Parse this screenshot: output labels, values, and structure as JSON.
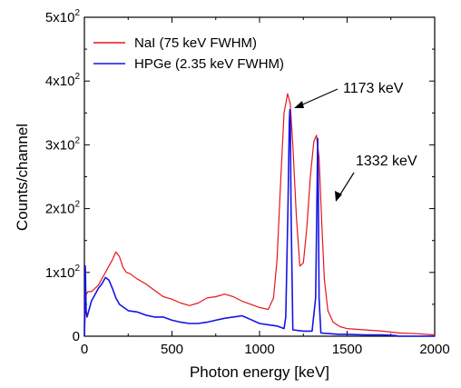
{
  "chart_data": {
    "type": "line",
    "title": "",
    "xlabel": "Photon energy [keV]",
    "ylabel": "Counts/channel",
    "xlim": [
      0,
      2000
    ],
    "ylim": [
      0,
      500
    ],
    "x_ticks": [
      0,
      500,
      1000,
      1500,
      2000
    ],
    "y_ticks": [
      {
        "value": 0,
        "mantissa": "0",
        "exp": ""
      },
      {
        "value": 100,
        "mantissa": "1x10",
        "exp": "2"
      },
      {
        "value": 200,
        "mantissa": "2x10",
        "exp": "2"
      },
      {
        "value": 300,
        "mantissa": "3x10",
        "exp": "2"
      },
      {
        "value": 400,
        "mantissa": "4x10",
        "exp": "2"
      },
      {
        "value": 500,
        "mantissa": "5x10",
        "exp": "2"
      }
    ],
    "legend_position": "top-left",
    "series": [
      {
        "name": "NaI (75 keV FWHM)",
        "color": "#e8141b",
        "x": [
          0,
          10,
          20,
          40,
          60,
          80,
          100,
          120,
          140,
          160,
          180,
          200,
          220,
          240,
          260,
          300,
          350,
          400,
          450,
          500,
          550,
          600,
          650,
          700,
          750,
          800,
          850,
          900,
          950,
          1000,
          1050,
          1080,
          1100,
          1120,
          1140,
          1160,
          1175,
          1190,
          1210,
          1230,
          1250,
          1270,
          1290,
          1310,
          1325,
          1340,
          1355,
          1370,
          1390,
          1420,
          1460,
          1500,
          1600,
          1700,
          1800,
          1900,
          2000
        ],
        "y": [
          0,
          65,
          70,
          70,
          75,
          80,
          90,
          100,
          110,
          120,
          132,
          125,
          108,
          100,
          98,
          90,
          82,
          72,
          62,
          58,
          52,
          48,
          52,
          60,
          62,
          66,
          62,
          55,
          50,
          45,
          42,
          60,
          120,
          240,
          350,
          380,
          365,
          300,
          190,
          110,
          115,
          170,
          250,
          305,
          315,
          280,
          180,
          90,
          40,
          22,
          15,
          12,
          10,
          8,
          5,
          4,
          2
        ]
      },
      {
        "name": "HPGe (2.35 keV FWHM)",
        "color": "#1414e6",
        "x": [
          0,
          5,
          10,
          15,
          20,
          40,
          60,
          80,
          100,
          120,
          140,
          160,
          180,
          200,
          250,
          300,
          350,
          400,
          450,
          500,
          550,
          600,
          650,
          700,
          750,
          800,
          850,
          900,
          950,
          1000,
          1050,
          1100,
          1140,
          1150,
          1162,
          1170,
          1173,
          1176,
          1180,
          1190,
          1250,
          1300,
          1320,
          1329,
          1332,
          1335,
          1340,
          1350,
          1400,
          1450,
          1500,
          1600,
          1700,
          1780,
          1790,
          2000
        ],
        "y": [
          0,
          110,
          40,
          30,
          35,
          55,
          65,
          75,
          82,
          92,
          88,
          75,
          60,
          50,
          40,
          38,
          33,
          30,
          30,
          25,
          22,
          20,
          20,
          22,
          25,
          28,
          30,
          32,
          26,
          20,
          18,
          16,
          12,
          30,
          200,
          335,
          355,
          330,
          200,
          10,
          8,
          8,
          60,
          240,
          310,
          240,
          60,
          5,
          4,
          3,
          3,
          2,
          2,
          1,
          0,
          0
        ]
      }
    ],
    "annotations": [
      {
        "text": "1173 keV",
        "x": 1173,
        "y": 380
      },
      {
        "text": "1332 keV",
        "x": 1332,
        "y": 315
      }
    ]
  }
}
